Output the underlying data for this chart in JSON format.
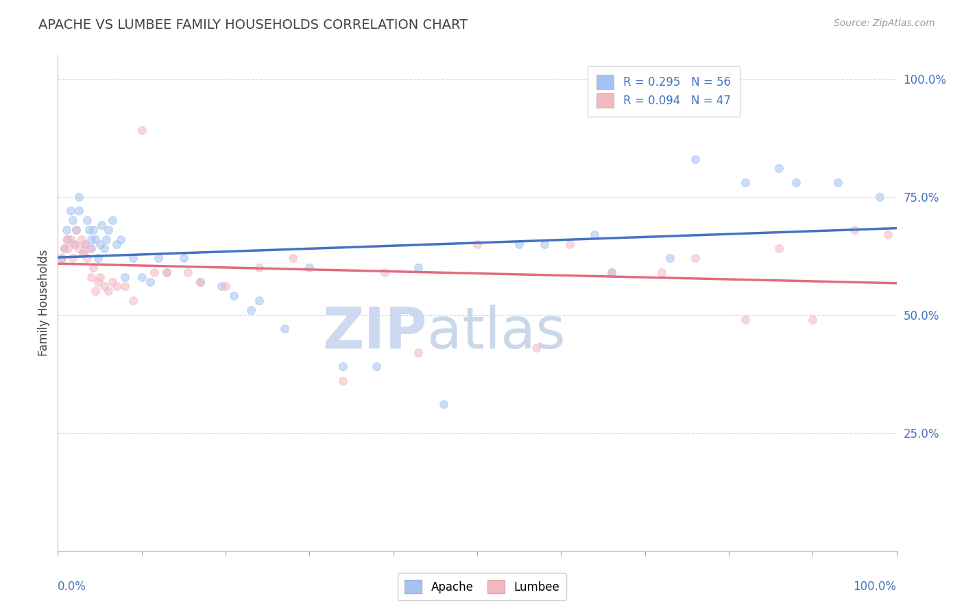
{
  "title": "APACHE VS LUMBEE FAMILY HOUSEHOLDS CORRELATION CHART",
  "source": "Source: ZipAtlas.com",
  "ylabel": "Family Households",
  "right_yticks": [
    0.25,
    0.5,
    0.75,
    1.0
  ],
  "right_yticklabels": [
    "25.0%",
    "50.0%",
    "75.0%",
    "100.0%"
  ],
  "apache_R": 0.295,
  "apache_N": 56,
  "lumbee_R": 0.094,
  "lumbee_N": 47,
  "apache_color": "#a4c2f4",
  "lumbee_color": "#f4b8c1",
  "apache_line_color": "#4472c4",
  "lumbee_line_color": "#e06c7e",
  "title_color": "#434343",
  "source_color": "#999999",
  "legend_R_color": "#4472c4",
  "watermark_color": "#ccd9f0",
  "background_color": "#ffffff",
  "grid_color": "#cccccc",
  "marker_size": 70,
  "marker_alpha": 0.55,
  "ylim_min": 0.0,
  "ylim_max": 1.05,
  "apache_x": [
    0.005,
    0.008,
    0.01,
    0.012,
    0.015,
    0.018,
    0.02,
    0.022,
    0.025,
    0.025,
    0.03,
    0.032,
    0.035,
    0.037,
    0.04,
    0.04,
    0.042,
    0.045,
    0.048,
    0.05,
    0.052,
    0.055,
    0.058,
    0.06,
    0.065,
    0.07,
    0.075,
    0.08,
    0.09,
    0.1,
    0.11,
    0.12,
    0.13,
    0.15,
    0.17,
    0.195,
    0.21,
    0.23,
    0.24,
    0.27,
    0.3,
    0.34,
    0.38,
    0.43,
    0.46,
    0.55,
    0.58,
    0.64,
    0.66,
    0.73,
    0.76,
    0.82,
    0.86,
    0.88,
    0.93,
    0.98
  ],
  "apache_y": [
    0.62,
    0.64,
    0.68,
    0.66,
    0.72,
    0.7,
    0.65,
    0.68,
    0.72,
    0.75,
    0.63,
    0.65,
    0.7,
    0.68,
    0.66,
    0.64,
    0.68,
    0.66,
    0.62,
    0.65,
    0.69,
    0.64,
    0.66,
    0.68,
    0.7,
    0.65,
    0.66,
    0.58,
    0.62,
    0.58,
    0.57,
    0.62,
    0.59,
    0.62,
    0.57,
    0.56,
    0.54,
    0.51,
    0.53,
    0.47,
    0.6,
    0.39,
    0.39,
    0.6,
    0.31,
    0.65,
    0.65,
    0.67,
    0.59,
    0.62,
    0.83,
    0.78,
    0.81,
    0.78,
    0.78,
    0.75
  ],
  "lumbee_x": [
    0.005,
    0.008,
    0.01,
    0.012,
    0.015,
    0.018,
    0.02,
    0.022,
    0.025,
    0.028,
    0.03,
    0.032,
    0.035,
    0.038,
    0.04,
    0.042,
    0.045,
    0.048,
    0.05,
    0.055,
    0.06,
    0.065,
    0.07,
    0.08,
    0.09,
    0.1,
    0.115,
    0.13,
    0.155,
    0.17,
    0.2,
    0.24,
    0.28,
    0.34,
    0.39,
    0.43,
    0.5,
    0.57,
    0.61,
    0.66,
    0.72,
    0.76,
    0.82,
    0.86,
    0.9,
    0.95,
    0.99
  ],
  "lumbee_y": [
    0.62,
    0.64,
    0.66,
    0.64,
    0.66,
    0.62,
    0.65,
    0.68,
    0.64,
    0.66,
    0.63,
    0.65,
    0.62,
    0.64,
    0.58,
    0.6,
    0.55,
    0.57,
    0.58,
    0.56,
    0.55,
    0.57,
    0.56,
    0.56,
    0.53,
    0.89,
    0.59,
    0.59,
    0.59,
    0.57,
    0.56,
    0.6,
    0.62,
    0.36,
    0.59,
    0.42,
    0.65,
    0.43,
    0.65,
    0.59,
    0.59,
    0.62,
    0.49,
    0.64,
    0.49,
    0.68,
    0.67
  ]
}
